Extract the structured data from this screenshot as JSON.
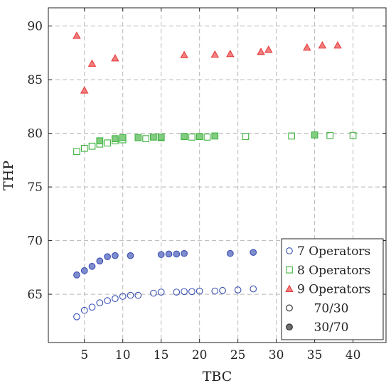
{
  "chart_data": {
    "type": "scatter",
    "title": "",
    "xlabel": "TBC",
    "ylabel": "THP",
    "xlim": [
      0.3,
      44.3
    ],
    "ylim": [
      60.5,
      91.7
    ],
    "xticks": [
      5,
      10,
      15,
      20,
      25,
      30,
      35,
      40
    ],
    "yticks": [
      65,
      70,
      75,
      80,
      85,
      90
    ],
    "grid": true,
    "legend_position": "bottom-right",
    "series": [
      {
        "name": "7 Operators",
        "subname": "70/30",
        "color": "#3a50b4",
        "marker": "circle",
        "filled": false,
        "x": [
          4,
          5,
          6,
          7,
          8,
          9,
          10,
          11,
          12,
          14,
          15,
          17,
          18,
          19,
          20,
          22,
          23,
          25,
          27
        ],
        "y": [
          62.9,
          63.5,
          63.8,
          64.2,
          64.4,
          64.6,
          64.8,
          64.9,
          64.9,
          65.1,
          65.2,
          65.2,
          65.25,
          65.25,
          65.3,
          65.3,
          65.35,
          65.4,
          65.5
        ]
      },
      {
        "name": "7 Operators",
        "subname": "30/70",
        "color": "#3a50b4",
        "marker": "circle",
        "filled": true,
        "x": [
          4,
          5,
          6,
          7,
          8,
          9,
          11,
          15,
          16,
          17,
          18,
          24,
          27
        ],
        "y": [
          66.8,
          67.2,
          67.6,
          68.1,
          68.5,
          68.6,
          68.6,
          68.7,
          68.75,
          68.75,
          68.8,
          68.8,
          68.9
        ]
      },
      {
        "name": "8 Operators",
        "subname": "70/30",
        "color": "#3fb23f",
        "marker": "square",
        "filled": false,
        "x": [
          4,
          5,
          6,
          7,
          8,
          9,
          10,
          13,
          15,
          19,
          21,
          26,
          32,
          37,
          40
        ],
        "y": [
          78.3,
          78.6,
          78.8,
          79.0,
          79.1,
          79.3,
          79.4,
          79.5,
          79.6,
          79.65,
          79.65,
          79.7,
          79.75,
          79.8,
          79.8
        ]
      },
      {
        "name": "8 Operators",
        "subname": "30/70",
        "color": "#3fb23f",
        "marker": "square",
        "filled": true,
        "x": [
          7,
          9,
          10,
          12,
          14,
          15,
          18,
          20,
          22,
          35
        ],
        "y": [
          79.3,
          79.5,
          79.6,
          79.6,
          79.65,
          79.65,
          79.7,
          79.7,
          79.75,
          79.85
        ]
      },
      {
        "name": "9 Operators",
        "subname": "",
        "color": "#e83c3c",
        "marker": "triangle",
        "filled": true,
        "x": [
          4,
          5,
          6,
          9,
          18,
          22,
          24,
          28,
          29,
          34,
          36,
          38
        ],
        "y": [
          89.1,
          84.0,
          86.5,
          87.0,
          87.3,
          87.35,
          87.4,
          87.6,
          87.8,
          88.0,
          88.2,
          88.2
        ]
      }
    ],
    "legend": [
      {
        "label": "7 Operators",
        "marker": "circle",
        "color": "#3a50b4",
        "filled": false
      },
      {
        "label": "8 Operators",
        "marker": "square",
        "color": "#3fb23f",
        "filled": false
      },
      {
        "label": "9 Operators",
        "marker": "triangle",
        "color": "#e83c3c",
        "filled": true
      },
      {
        "label": "70/30",
        "marker": "circle",
        "color": "#222222",
        "filled": false
      },
      {
        "label": "30/70",
        "marker": "circle",
        "color": "#222222",
        "filled": true
      }
    ]
  }
}
